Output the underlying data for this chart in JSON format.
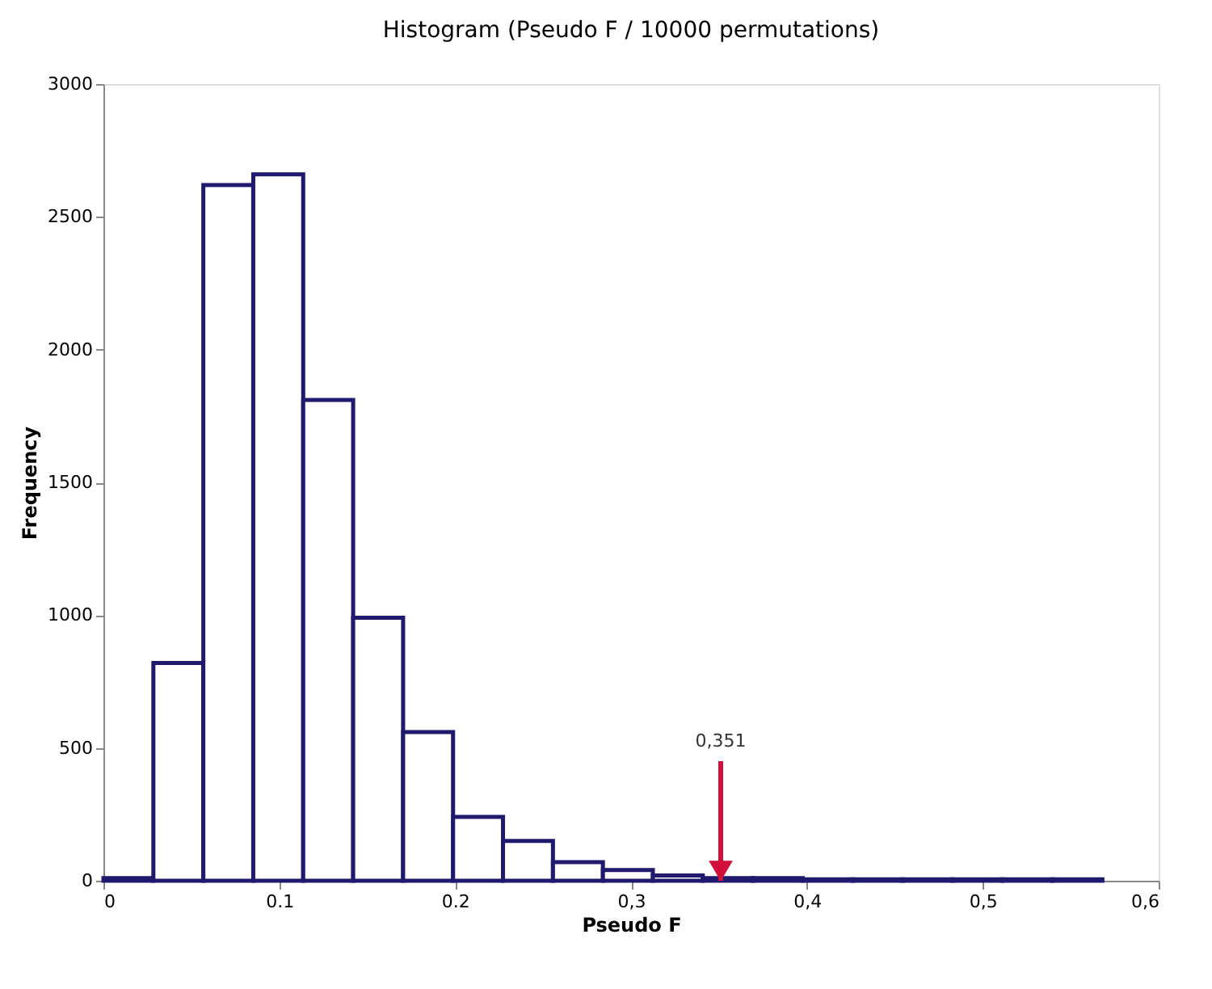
{
  "chart_data": {
    "type": "histogram",
    "title": "Histogram (Pseudo F / 10000 permutations)",
    "xlabel": "Pseudo F",
    "ylabel": "Frequency",
    "bins": [
      0,
      0.0284,
      0.0568,
      0.0852,
      0.1136,
      0.142,
      0.1704,
      0.1988,
      0.2272,
      0.2556,
      0.284,
      0.3124,
      0.3408,
      0.3692,
      0.3976,
      0.426,
      0.4544,
      0.4828,
      0.5112,
      0.5396,
      0.568
    ],
    "values": [
      10,
      820,
      2620,
      2660,
      1810,
      990,
      560,
      240,
      150,
      70,
      40,
      20,
      10,
      10,
      5,
      5,
      5,
      5,
      5,
      5
    ],
    "color": "#1f1a6e",
    "xlim": [
      0,
      0.6
    ],
    "xticks": [
      0,
      {
        "value": 0.1,
        "label": "0.1"
      },
      {
        "value": 0.2,
        "label": "0.2"
      },
      {
        "value": 0.3,
        "label": "0,3"
      },
      {
        "value": 0.4,
        "label": "0,4"
      },
      {
        "value": 0.5,
        "label": "0,5"
      },
      {
        "value": 0.6,
        "label": "0,6"
      }
    ],
    "ylim": [
      0,
      3000
    ],
    "yticks": [
      0,
      500,
      1000,
      1500,
      2000,
      2500,
      3000
    ],
    "annotations": [
      {
        "text": "0,351",
        "x": 0.351,
        "y": 0
      }
    ],
    "grid": false
  }
}
